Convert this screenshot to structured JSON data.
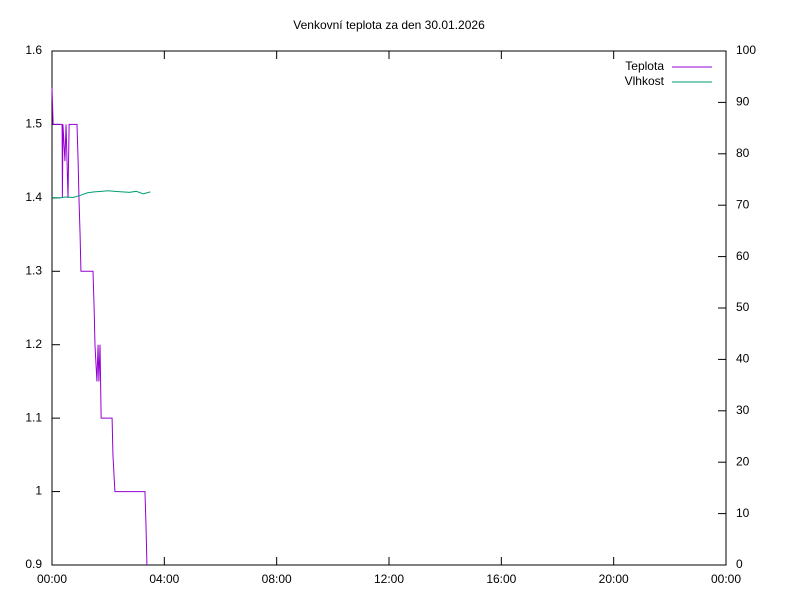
{
  "chart_data": {
    "type": "line",
    "title": "Venkovní teplota za den 30.01.2026",
    "xlim": [
      0,
      24
    ],
    "xticks": [
      {
        "value": 0,
        "label": "00:00"
      },
      {
        "value": 4,
        "label": "04:00"
      },
      {
        "value": 8,
        "label": "08:00"
      },
      {
        "value": 12,
        "label": "12:00"
      },
      {
        "value": 16,
        "label": "16:00"
      },
      {
        "value": 20,
        "label": "20:00"
      },
      {
        "value": 24,
        "label": "00:00"
      }
    ],
    "ylim": [
      0.9,
      1.6
    ],
    "yticks": [
      0.9,
      1,
      1.1,
      1.2,
      1.3,
      1.4,
      1.5,
      1.6
    ],
    "y2lim": [
      0,
      100
    ],
    "y2ticks": [
      0,
      10,
      20,
      30,
      40,
      50,
      60,
      70,
      80,
      90,
      100
    ],
    "legend": "top-right",
    "series": [
      {
        "name": "Teplota",
        "color": "#9400d3",
        "x": [
          0,
          0.04,
          0.36,
          0.37,
          0.39,
          0.46,
          0.5,
          0.57,
          0.61,
          0.89,
          0.93,
          0.96,
          1,
          1.03,
          1.46,
          1.5,
          1.53,
          1.6,
          1.64,
          1.67,
          1.71,
          1.75,
          2.14,
          2.17,
          2.24,
          3.31,
          3.35,
          3.38
        ],
        "values": [
          1.55,
          1.5,
          1.5,
          1.4,
          1.5,
          1.45,
          1.5,
          1.4,
          1.5,
          1.5,
          1.45,
          1.4,
          1.35,
          1.3,
          1.3,
          1.25,
          1.2,
          1.15,
          1.2,
          1.15,
          1.2,
          1.1,
          1.1,
          1.05,
          1,
          1,
          0.95,
          0.9
        ]
      },
      {
        "name": "Vlhkost",
        "color": "#009e73",
        "axis": "y2",
        "x": [
          0,
          0.25,
          0.5,
          0.75,
          1,
          1.25,
          1.5,
          1.75,
          2,
          2.25,
          2.5,
          2.75,
          3,
          3.25,
          3.5
        ],
        "values": [
          71.5,
          71.4,
          71.6,
          71.5,
          71.9,
          72.4,
          72.6,
          72.7,
          72.8,
          72.7,
          72.6,
          72.5,
          72.7,
          72.2,
          72.6
        ]
      }
    ]
  }
}
